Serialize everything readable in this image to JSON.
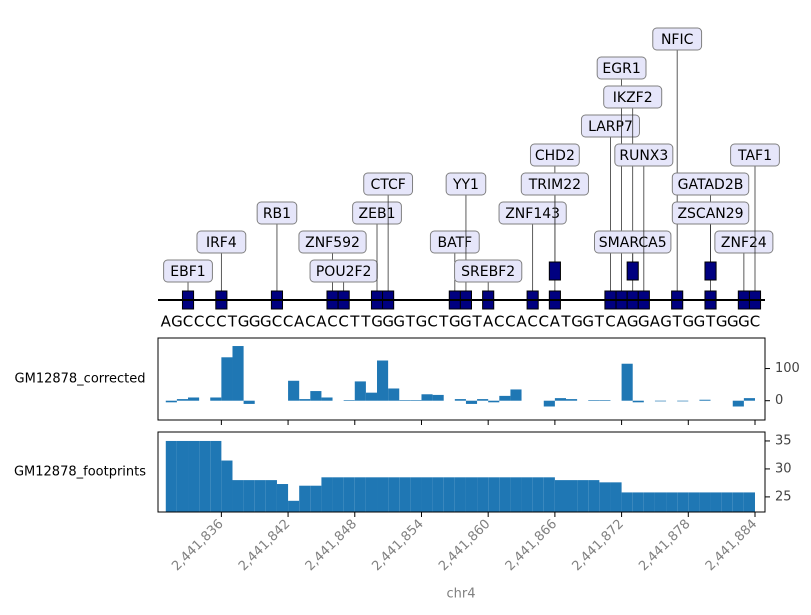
{
  "motif_track": {
    "sequence": [
      "A",
      "G",
      "C",
      "C",
      "C",
      "C",
      "T",
      "G",
      "G",
      "G",
      "C",
      "C",
      "A",
      "C",
      "A",
      "C",
      "C",
      "T",
      "T",
      "G",
      "G",
      "G",
      "T",
      "G",
      "C",
      "T",
      "G",
      "G",
      "T",
      "A",
      "C",
      "C",
      "A",
      "C",
      "C",
      "A",
      "T",
      "G",
      "G",
      "T",
      "C",
      "A",
      "G",
      "G",
      "A",
      "G",
      "T",
      "G",
      "G",
      "T",
      "G",
      "G",
      "G",
      "C"
    ],
    "sequence_start": 2441831,
    "motifs": [
      {
        "name": "EBF1",
        "position": 2441833
      },
      {
        "name": "IRF4",
        "position": 2441836
      },
      {
        "name": "RB1",
        "position": 2441841
      },
      {
        "name": "ZNF592",
        "position": 2441846
      },
      {
        "name": "POU2F2",
        "position": 2441847
      },
      {
        "name": "ZEB1",
        "position": 2441850
      },
      {
        "name": "CTCF",
        "position": 2441851
      },
      {
        "name": "BATF",
        "position": 2441857
      },
      {
        "name": "YY1",
        "position": 2441858
      },
      {
        "name": "SREBF2",
        "position": 2441860
      },
      {
        "name": "ZNF143",
        "position": 2441864
      },
      {
        "name": "CHD2",
        "position": 2441866
      },
      {
        "name": "TRIM22",
        "position": 2441866
      },
      {
        "name": "LARP7",
        "position": 2441871
      },
      {
        "name": "EGR1",
        "position": 2441872
      },
      {
        "name": "IKZF2",
        "position": 2441873
      },
      {
        "name": "SMARCA5",
        "position": 2441873
      },
      {
        "name": "RUNX3",
        "position": 2441874
      },
      {
        "name": "NFIC",
        "position": 2441877
      },
      {
        "name": "GATAD2B",
        "position": 2441880
      },
      {
        "name": "ZSCAN29",
        "position": 2441880
      },
      {
        "name": "ZNF24",
        "position": 2441883
      },
      {
        "name": "TAF1",
        "position": 2441884
      }
    ],
    "motif_color": "#000080"
  },
  "x_axis": {
    "label": "chr4",
    "xlim": [
      2441830.3,
      2441884.9
    ],
    "xticks": [
      {
        "value": 2441836,
        "label": "2,441,836"
      },
      {
        "value": 2441842,
        "label": "2,441,842"
      },
      {
        "value": 2441848,
        "label": "2,441,848"
      },
      {
        "value": 2441854,
        "label": "2,441,854"
      },
      {
        "value": 2441860,
        "label": "2,441,860"
      },
      {
        "value": 2441866,
        "label": "2,441,866"
      },
      {
        "value": 2441872,
        "label": "2,441,872"
      },
      {
        "value": 2441878,
        "label": "2,441,878"
      },
      {
        "value": 2441884,
        "label": "2,441,884"
      }
    ]
  },
  "chart_data": [
    {
      "type": "bar",
      "label": "GM12878_corrected",
      "color": "#1f77b4",
      "ylim": [
        -60,
        195
      ],
      "yticks": [
        0,
        100
      ],
      "x": [
        2441831,
        2441832,
        2441833,
        2441834,
        2441835,
        2441836,
        2441837,
        2441838,
        2441839,
        2441840,
        2441841,
        2441842,
        2441843,
        2441844,
        2441845,
        2441846,
        2441847,
        2441848,
        2441849,
        2441850,
        2441851,
        2441852,
        2441853,
        2441854,
        2441855,
        2441856,
        2441857,
        2441858,
        2441859,
        2441860,
        2441861,
        2441862,
        2441863,
        2441864,
        2441865,
        2441866,
        2441867,
        2441868,
        2441869,
        2441870,
        2441871,
        2441872,
        2441873,
        2441874,
        2441875,
        2441876,
        2441877,
        2441878,
        2441879,
        2441880,
        2441881,
        2441882,
        2441883
      ],
      "values": [
        -5,
        5,
        10,
        0,
        10,
        135,
        170,
        -10,
        0,
        0,
        0,
        62,
        5,
        30,
        10,
        0,
        2,
        60,
        25,
        125,
        38,
        2,
        2,
        20,
        18,
        0,
        5,
        -10,
        5,
        -5,
        15,
        35,
        0,
        0,
        -18,
        8,
        5,
        0,
        2,
        2,
        0,
        115,
        -5,
        0,
        -2,
        0,
        -2,
        0,
        3,
        0,
        0,
        -18,
        8
      ]
    },
    {
      "type": "bar",
      "label": "GM12878_footprints",
      "color": "#1f77b4",
      "ylim": [
        22.3,
        36.6
      ],
      "yticks": [
        25,
        30,
        35
      ],
      "x": [
        2441831,
        2441832,
        2441833,
        2441834,
        2441835,
        2441836,
        2441837,
        2441838,
        2441839,
        2441840,
        2441841,
        2441842,
        2441843,
        2441844,
        2441845,
        2441846,
        2441847,
        2441848,
        2441849,
        2441850,
        2441851,
        2441852,
        2441853,
        2441854,
        2441855,
        2441856,
        2441857,
        2441858,
        2441859,
        2441860,
        2441861,
        2441862,
        2441863,
        2441864,
        2441865,
        2441866,
        2441867,
        2441868,
        2441869,
        2441870,
        2441871,
        2441872,
        2441873,
        2441874,
        2441875,
        2441876,
        2441877,
        2441878,
        2441879,
        2441880,
        2441881,
        2441882,
        2441883
      ],
      "values": [
        35,
        35,
        35,
        35,
        35,
        31.5,
        28,
        28,
        28,
        28,
        27.3,
        24.3,
        27,
        27,
        28.5,
        28.5,
        28.5,
        28.5,
        28.5,
        28.5,
        28.5,
        28.5,
        28.5,
        28.5,
        28.5,
        28.5,
        28.5,
        28.5,
        28.5,
        28.5,
        28.5,
        28.5,
        28.5,
        28.5,
        28.5,
        28,
        28,
        28,
        28,
        27.6,
        27.6,
        25.8,
        25.8,
        25.8,
        25.8,
        25.8,
        25.8,
        25.8,
        25.8,
        25.8,
        25.8,
        25.8,
        25.8
      ]
    }
  ]
}
